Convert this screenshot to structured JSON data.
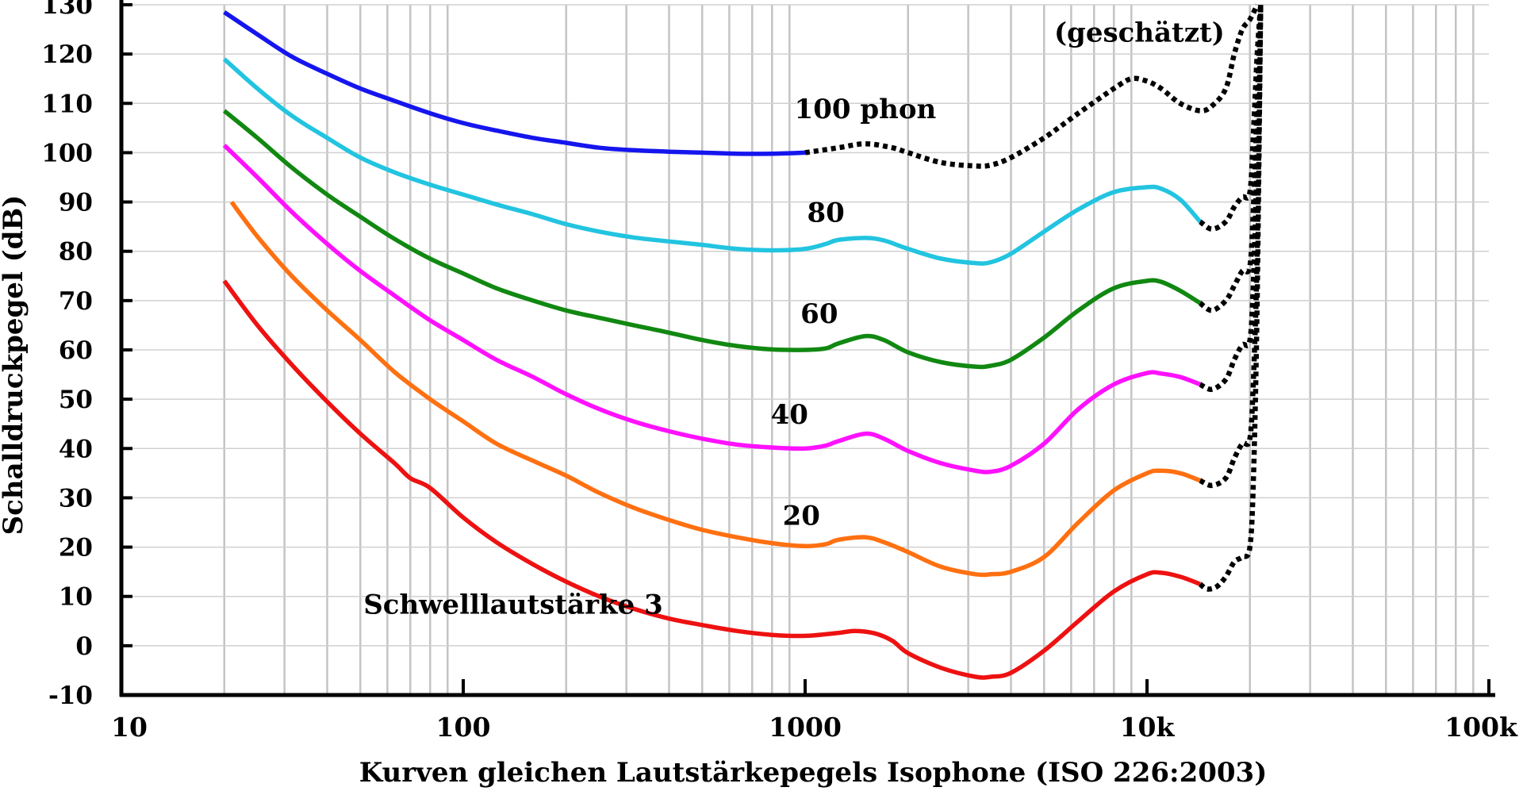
{
  "chart_data": {
    "type": "line",
    "title": "",
    "xlabel": "Kurven gleichen Lautstärkepegels Isophone (ISO 226:2003)",
    "ylabel": "Schalldruckpegel (dB)",
    "x_scale": "log",
    "xlim": [
      10,
      100000
    ],
    "ylim": [
      -10,
      130
    ],
    "grid": true,
    "x_ticks": [
      {
        "value": 10,
        "label": "10"
      },
      {
        "value": 100,
        "label": "100"
      },
      {
        "value": 1000,
        "label": "1000"
      },
      {
        "value": 10000,
        "label": "10k"
      },
      {
        "value": 100000,
        "label": "100k"
      }
    ],
    "y_ticks": [
      {
        "value": -10,
        "label": "-10"
      },
      {
        "value": 0,
        "label": "0"
      },
      {
        "value": 10,
        "label": "10"
      },
      {
        "value": 20,
        "label": "20"
      },
      {
        "value": 30,
        "label": "30"
      },
      {
        "value": 40,
        "label": "40"
      },
      {
        "value": 50,
        "label": "50"
      },
      {
        "value": 60,
        "label": "60"
      },
      {
        "value": 70,
        "label": "70"
      },
      {
        "value": 80,
        "label": "80"
      },
      {
        "value": 90,
        "label": "90"
      },
      {
        "value": 100,
        "label": "100"
      },
      {
        "value": 110,
        "label": "110"
      },
      {
        "value": 120,
        "label": "120"
      },
      {
        "value": 130,
        "label": "130"
      }
    ],
    "series": [
      {
        "name": "",
        "color": "#ee1111",
        "points": [
          [
            20,
            74
          ],
          [
            25,
            65
          ],
          [
            31.5,
            57
          ],
          [
            40,
            49.5
          ],
          [
            50,
            43
          ],
          [
            63,
            37
          ],
          [
            70,
            34
          ],
          [
            80,
            32
          ],
          [
            100,
            26
          ],
          [
            125,
            21
          ],
          [
            160,
            16.5
          ],
          [
            200,
            13
          ],
          [
            250,
            10
          ],
          [
            315,
            7.5
          ],
          [
            400,
            5.5
          ],
          [
            500,
            4.2
          ],
          [
            630,
            3
          ],
          [
            800,
            2.2
          ],
          [
            1000,
            2
          ],
          [
            1250,
            2.6
          ],
          [
            1400,
            3
          ],
          [
            1600,
            2.5
          ],
          [
            1800,
            1
          ],
          [
            2000,
            -1.5
          ],
          [
            2500,
            -4.5
          ],
          [
            3150,
            -6.3
          ],
          [
            3500,
            -6.3
          ],
          [
            4000,
            -5.5
          ],
          [
            5000,
            -1
          ],
          [
            6300,
            5
          ],
          [
            8000,
            11
          ],
          [
            10000,
            14.5
          ],
          [
            11000,
            14.8
          ],
          [
            12500,
            14
          ],
          [
            14300,
            12.5
          ]
        ],
        "extension": [
          [
            14300,
            12.5
          ],
          [
            15000,
            11.5
          ],
          [
            16000,
            12
          ],
          [
            17000,
            14
          ],
          [
            18000,
            17
          ],
          [
            19000,
            18
          ],
          [
            20000,
            20
          ],
          [
            20500,
            35
          ],
          [
            21000,
            70
          ],
          [
            21500,
            130
          ]
        ]
      },
      {
        "name": "",
        "color": "#ff7011",
        "points": [
          [
            21,
            90
          ],
          [
            25,
            83
          ],
          [
            31.5,
            75
          ],
          [
            40,
            68
          ],
          [
            50,
            62
          ],
          [
            63,
            55.5
          ],
          [
            80,
            50
          ],
          [
            100,
            45.5
          ],
          [
            125,
            41
          ],
          [
            160,
            37.5
          ],
          [
            200,
            34.5
          ],
          [
            250,
            31
          ],
          [
            315,
            28
          ],
          [
            400,
            25.5
          ],
          [
            500,
            23.5
          ],
          [
            630,
            22
          ],
          [
            800,
            20.8
          ],
          [
            1000,
            20.2
          ],
          [
            1150,
            20.6
          ],
          [
            1250,
            21.5
          ],
          [
            1500,
            22
          ],
          [
            1700,
            21
          ],
          [
            2000,
            19
          ],
          [
            2500,
            16
          ],
          [
            3150,
            14.5
          ],
          [
            3500,
            14.5
          ],
          [
            4000,
            15
          ],
          [
            5000,
            18
          ],
          [
            6300,
            25
          ],
          [
            8000,
            31.5
          ],
          [
            10000,
            35
          ],
          [
            11000,
            35.5
          ],
          [
            12500,
            35
          ],
          [
            14300,
            33.5
          ]
        ],
        "extension": [
          [
            14300,
            33.5
          ],
          [
            15500,
            32.5
          ],
          [
            17000,
            34
          ],
          [
            18000,
            38
          ],
          [
            19000,
            41
          ],
          [
            20000,
            42
          ],
          [
            20500,
            55
          ],
          [
            21000,
            80
          ],
          [
            21500,
            130
          ]
        ]
      },
      {
        "name": "",
        "color": "#ff11ff",
        "points": [
          [
            20,
            101.5
          ],
          [
            25,
            95
          ],
          [
            31.5,
            88
          ],
          [
            40,
            81.5
          ],
          [
            50,
            76
          ],
          [
            63,
            71
          ],
          [
            80,
            66
          ],
          [
            100,
            62
          ],
          [
            125,
            58
          ],
          [
            160,
            54.5
          ],
          [
            200,
            51
          ],
          [
            250,
            48
          ],
          [
            315,
            45.5
          ],
          [
            400,
            43.5
          ],
          [
            500,
            42
          ],
          [
            630,
            40.8
          ],
          [
            800,
            40.2
          ],
          [
            1000,
            40
          ],
          [
            1150,
            40.6
          ],
          [
            1250,
            41.5
          ],
          [
            1500,
            43
          ],
          [
            1700,
            42
          ],
          [
            2000,
            39.5
          ],
          [
            2500,
            37
          ],
          [
            3150,
            35.5
          ],
          [
            3500,
            35.3
          ],
          [
            4000,
            36.5
          ],
          [
            5000,
            41
          ],
          [
            6300,
            48
          ],
          [
            8000,
            53
          ],
          [
            10000,
            55.3
          ],
          [
            11000,
            55.2
          ],
          [
            12500,
            54.5
          ],
          [
            14300,
            53
          ]
        ],
        "extension": [
          [
            14300,
            53
          ],
          [
            15500,
            52
          ],
          [
            17000,
            54
          ],
          [
            18000,
            58
          ],
          [
            19000,
            61
          ],
          [
            20000,
            62
          ],
          [
            20500,
            75
          ],
          [
            21000,
            100
          ],
          [
            21500,
            130
          ]
        ]
      },
      {
        "name": "",
        "color": "#118811",
        "points": [
          [
            20,
            108.5
          ],
          [
            25,
            103
          ],
          [
            31.5,
            97
          ],
          [
            40,
            91.5
          ],
          [
            50,
            87
          ],
          [
            63,
            82.5
          ],
          [
            80,
            78.5
          ],
          [
            100,
            75.5
          ],
          [
            125,
            72.5
          ],
          [
            160,
            70
          ],
          [
            200,
            68
          ],
          [
            250,
            66.5
          ],
          [
            315,
            65
          ],
          [
            400,
            63.5
          ],
          [
            500,
            62
          ],
          [
            630,
            60.8
          ],
          [
            800,
            60.1
          ],
          [
            1000,
            60
          ],
          [
            1150,
            60.3
          ],
          [
            1250,
            61.3
          ],
          [
            1500,
            62.8
          ],
          [
            1700,
            62
          ],
          [
            2000,
            59.5
          ],
          [
            2500,
            57.5
          ],
          [
            3150,
            56.6
          ],
          [
            3500,
            56.8
          ],
          [
            4000,
            58
          ],
          [
            5000,
            62.5
          ],
          [
            6300,
            68
          ],
          [
            8000,
            72.5
          ],
          [
            10000,
            74
          ],
          [
            11000,
            73.8
          ],
          [
            12500,
            72
          ],
          [
            14300,
            69.5
          ]
        ],
        "extension": [
          [
            14300,
            69.5
          ],
          [
            15500,
            68
          ],
          [
            17000,
            70
          ],
          [
            18000,
            73
          ],
          [
            19000,
            76
          ],
          [
            20000,
            77
          ],
          [
            20500,
            90
          ],
          [
            21000,
            110
          ],
          [
            21500,
            130
          ]
        ]
      },
      {
        "name": "",
        "color": "#22c4e0",
        "points": [
          [
            20,
            119
          ],
          [
            25,
            113
          ],
          [
            31.5,
            107.5
          ],
          [
            40,
            103
          ],
          [
            50,
            99
          ],
          [
            63,
            96
          ],
          [
            80,
            93.5
          ],
          [
            100,
            91.5
          ],
          [
            125,
            89.5
          ],
          [
            160,
            87.5
          ],
          [
            200,
            85.5
          ],
          [
            250,
            84
          ],
          [
            315,
            82.8
          ],
          [
            400,
            82
          ],
          [
            500,
            81.3
          ],
          [
            630,
            80.5
          ],
          [
            800,
            80.2
          ],
          [
            1000,
            80.5
          ],
          [
            1150,
            81.5
          ],
          [
            1250,
            82.3
          ],
          [
            1500,
            82.7
          ],
          [
            1700,
            82.2
          ],
          [
            2000,
            80.5
          ],
          [
            2500,
            78.5
          ],
          [
            3150,
            77.6
          ],
          [
            3500,
            77.8
          ],
          [
            4000,
            79.5
          ],
          [
            5000,
            84
          ],
          [
            6300,
            88.5
          ],
          [
            8000,
            92
          ],
          [
            10000,
            93
          ],
          [
            11000,
            92.7
          ],
          [
            12500,
            90.5
          ],
          [
            14300,
            86
          ]
        ],
        "extension": [
          [
            14300,
            86
          ],
          [
            15500,
            84.5
          ],
          [
            17000,
            86
          ],
          [
            18000,
            89
          ],
          [
            19000,
            91
          ],
          [
            20000,
            92
          ],
          [
            20500,
            105
          ],
          [
            21000,
            120
          ],
          [
            21500,
            130
          ]
        ]
      },
      {
        "name": "",
        "color": "#1515ee",
        "points": [
          [
            20,
            128.5
          ],
          [
            25,
            124
          ],
          [
            31.5,
            119.5
          ],
          [
            40,
            116
          ],
          [
            50,
            113
          ],
          [
            63,
            110.5
          ],
          [
            80,
            108
          ],
          [
            100,
            106
          ],
          [
            125,
            104.5
          ],
          [
            160,
            103
          ],
          [
            200,
            102
          ],
          [
            250,
            101
          ],
          [
            315,
            100.5
          ],
          [
            400,
            100.2
          ],
          [
            500,
            100
          ],
          [
            630,
            99.8
          ],
          [
            800,
            99.8
          ],
          [
            1000,
            100
          ]
        ],
        "extension": [
          [
            1000,
            100
          ],
          [
            1250,
            101
          ],
          [
            1500,
            101.8
          ],
          [
            1800,
            101
          ],
          [
            2000,
            100
          ],
          [
            2500,
            98
          ],
          [
            3150,
            97.3
          ],
          [
            3500,
            97.5
          ],
          [
            4000,
            99
          ],
          [
            5000,
            103
          ],
          [
            6300,
            108
          ],
          [
            8000,
            113
          ],
          [
            9000,
            115
          ],
          [
            10000,
            114.5
          ],
          [
            11000,
            113
          ],
          [
            12500,
            110
          ],
          [
            14300,
            108.5
          ],
          [
            15500,
            109.5
          ],
          [
            17000,
            113
          ],
          [
            18000,
            120
          ],
          [
            19000,
            125
          ],
          [
            20000,
            127
          ],
          [
            21000,
            130
          ]
        ]
      }
    ],
    "annotations": [
      {
        "text": "(geschätzt)",
        "x": 9500,
        "y": 122.5
      },
      {
        "text": "100 phon",
        "x": 1500,
        "y": 107
      },
      {
        "text": "80",
        "x": 1150,
        "y": 86
      },
      {
        "text": "60",
        "x": 1100,
        "y": 65.5
      },
      {
        "text": "40",
        "x": 900,
        "y": 45
      },
      {
        "text": "20",
        "x": 975,
        "y": 24.5
      },
      {
        "text": "Schwelllautstärke 3",
        "x": 140,
        "y": 6.5
      }
    ]
  }
}
